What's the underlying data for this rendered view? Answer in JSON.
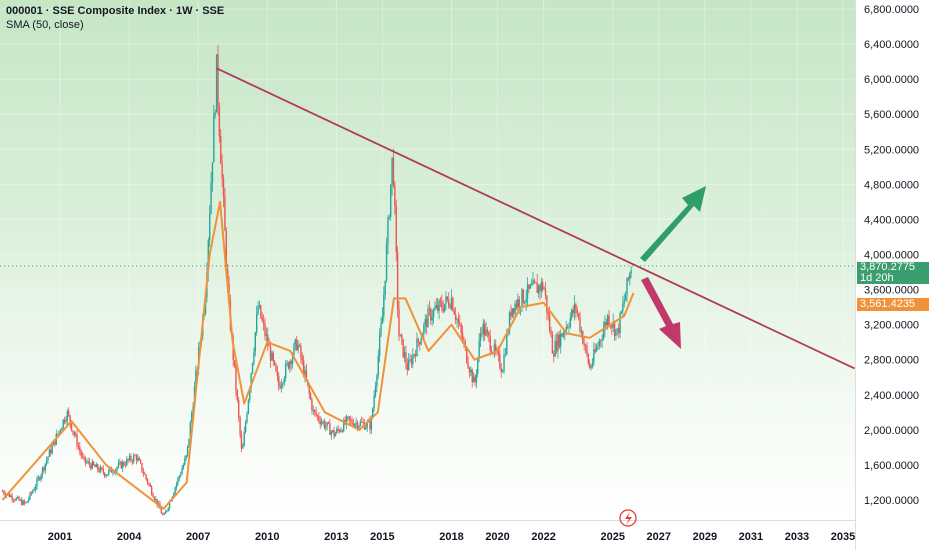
{
  "header": {
    "title": "000001 · SSE Composite Index · 1W · SSE",
    "indicator": "SMA (50, close)"
  },
  "price_tag": {
    "value": "3,870.2775",
    "countdown": "1d 20h",
    "color": "#3a9e6e"
  },
  "sma_tag": {
    "value": "3,561.4235",
    "color": "#f0923a"
  },
  "chart_data": {
    "type": "line",
    "title": "000001 · SSE Composite Index · 1W · SSE",
    "ylim": [
      1200,
      6800
    ],
    "xlim": [
      1998.4,
      2035.5
    ],
    "y_ticks": [
      "6,800.0000",
      "6,400.0000",
      "6,000.0000",
      "5,600.0000",
      "5,200.0000",
      "4,800.0000",
      "4,400.0000",
      "4,000.0000",
      "3,600.0000",
      "3,200.0000",
      "2,800.0000",
      "2,400.0000",
      "2,000.0000",
      "1,600.0000",
      "1,200.0000"
    ],
    "y_tick_values": [
      6800,
      6400,
      6000,
      5600,
      5200,
      4800,
      4400,
      4000,
      3600,
      3200,
      2800,
      2400,
      2000,
      1600,
      1200
    ],
    "x_ticks": [
      "2001",
      "2004",
      "2007",
      "2010",
      "2013",
      "2015",
      "2018",
      "2020",
      "2022",
      "2025",
      "2027",
      "2029",
      "2031",
      "2033",
      "2035"
    ],
    "x_tick_values": [
      2001,
      2004,
      2007,
      2010,
      2013,
      2015,
      2018,
      2020,
      2022,
      2025,
      2027,
      2029,
      2031,
      2033,
      2035
    ],
    "series": [
      {
        "name": "SSE Composite",
        "color": "#26a69a",
        "points": [
          [
            1998.5,
            1300
          ],
          [
            1999.5,
            1150
          ],
          [
            2000,
            1400
          ],
          [
            2001.3,
            2200
          ],
          [
            2002,
            1650
          ],
          [
            2003,
            1500
          ],
          [
            2004.3,
            1700
          ],
          [
            2005.5,
            1000
          ],
          [
            2006.5,
            1700
          ],
          [
            2007.3,
            3500
          ],
          [
            2007.8,
            6100
          ],
          [
            2008.3,
            3500
          ],
          [
            2008.9,
            1700
          ],
          [
            2009.6,
            3400
          ],
          [
            2010.5,
            2500
          ],
          [
            2011.3,
            3000
          ],
          [
            2012,
            2200
          ],
          [
            2012.9,
            1950
          ],
          [
            2013.5,
            2100
          ],
          [
            2014.5,
            2050
          ],
          [
            2015,
            3300
          ],
          [
            2015.45,
            5170
          ],
          [
            2015.7,
            3100
          ],
          [
            2016.1,
            2700
          ],
          [
            2017,
            3300
          ],
          [
            2018,
            3500
          ],
          [
            2019,
            2500
          ],
          [
            2019.3,
            3200
          ],
          [
            2020.2,
            2700
          ],
          [
            2020.6,
            3400
          ],
          [
            2021.5,
            3600
          ],
          [
            2022,
            3650
          ],
          [
            2022.4,
            2900
          ],
          [
            2023.4,
            3400
          ],
          [
            2024,
            2700
          ],
          [
            2024.8,
            3300
          ],
          [
            2025.2,
            3100
          ],
          [
            2025.6,
            3600
          ],
          [
            2025.8,
            3870
          ]
        ]
      },
      {
        "name": "SMA (50, close)",
        "color": "#f0923a",
        "points": [
          [
            1998.5,
            1200
          ],
          [
            2001.5,
            2100
          ],
          [
            2003,
            1600
          ],
          [
            2005.5,
            1100
          ],
          [
            2006.5,
            1400
          ],
          [
            2007.5,
            4000
          ],
          [
            2007.95,
            4600
          ],
          [
            2008.5,
            3000
          ],
          [
            2009,
            2300
          ],
          [
            2010,
            3000
          ],
          [
            2011,
            2900
          ],
          [
            2012.5,
            2200
          ],
          [
            2014,
            2000
          ],
          [
            2014.8,
            2200
          ],
          [
            2015.5,
            3500
          ],
          [
            2016,
            3500
          ],
          [
            2017,
            2900
          ],
          [
            2018,
            3200
          ],
          [
            2019,
            2800
          ],
          [
            2020,
            2900
          ],
          [
            2021,
            3400
          ],
          [
            2022,
            3450
          ],
          [
            2023,
            3100
          ],
          [
            2024,
            3050
          ],
          [
            2025.5,
            3300
          ],
          [
            2025.9,
            3561
          ]
        ]
      },
      {
        "name": "Trendline",
        "color": "#b23a5a",
        "points": [
          [
            2007.8,
            6124
          ],
          [
            2035.5,
            2700
          ]
        ]
      }
    ],
    "last_price": 3870.2775,
    "sma_value": 3561.4235
  }
}
